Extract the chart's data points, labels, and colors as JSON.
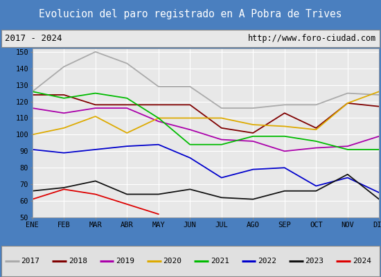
{
  "title": "Evolucion del paro registrado en A Pobra de Trives",
  "subtitle_left": "2017 - 2024",
  "subtitle_right": "http://www.foro-ciudad.com",
  "xlabel_months": [
    "ENE",
    "FEB",
    "MAR",
    "ABR",
    "MAY",
    "JUN",
    "JUL",
    "AGO",
    "SEP",
    "OCT",
    "NOV",
    "DIC"
  ],
  "ylim": [
    50,
    152
  ],
  "yticks": [
    50,
    60,
    70,
    80,
    90,
    100,
    110,
    120,
    130,
    140,
    150
  ],
  "series": {
    "2017": {
      "color": "#aaaaaa",
      "values": [
        126,
        141,
        150,
        143,
        129,
        129,
        116,
        116,
        118,
        118,
        125,
        124
      ]
    },
    "2018": {
      "color": "#7f0000",
      "values": [
        124,
        124,
        118,
        118,
        118,
        118,
        104,
        101,
        113,
        104,
        119,
        117
      ]
    },
    "2019": {
      "color": "#aa00aa",
      "values": [
        116,
        113,
        116,
        116,
        108,
        103,
        97,
        96,
        90,
        92,
        93,
        99
      ]
    },
    "2020": {
      "color": "#ddaa00",
      "values": [
        100,
        104,
        111,
        101,
        110,
        110,
        110,
        106,
        105,
        103,
        119,
        126
      ]
    },
    "2021": {
      "color": "#00bb00",
      "values": [
        126,
        122,
        125,
        122,
        110,
        94,
        94,
        99,
        99,
        96,
        91,
        91
      ]
    },
    "2022": {
      "color": "#0000cc",
      "values": [
        91,
        89,
        91,
        93,
        94,
        86,
        74,
        79,
        80,
        69,
        74,
        65
      ]
    },
    "2023": {
      "color": "#111111",
      "values": [
        66,
        68,
        72,
        64,
        64,
        67,
        62,
        61,
        66,
        66,
        76,
        61
      ]
    },
    "2024": {
      "color": "#dd0000",
      "values": [
        61,
        67,
        64,
        58,
        52,
        null,
        null,
        null,
        null,
        null,
        null,
        null
      ]
    }
  },
  "title_bg_color": "#4a7fbf",
  "title_text_color": "#ffffff",
  "subtitle_bg_color": "#e8e8e8",
  "plot_bg_color": "#e8e8e8",
  "grid_color": "#ffffff",
  "border_color": "#4a7fbf",
  "legend_bg_color": "#e0e0e0"
}
